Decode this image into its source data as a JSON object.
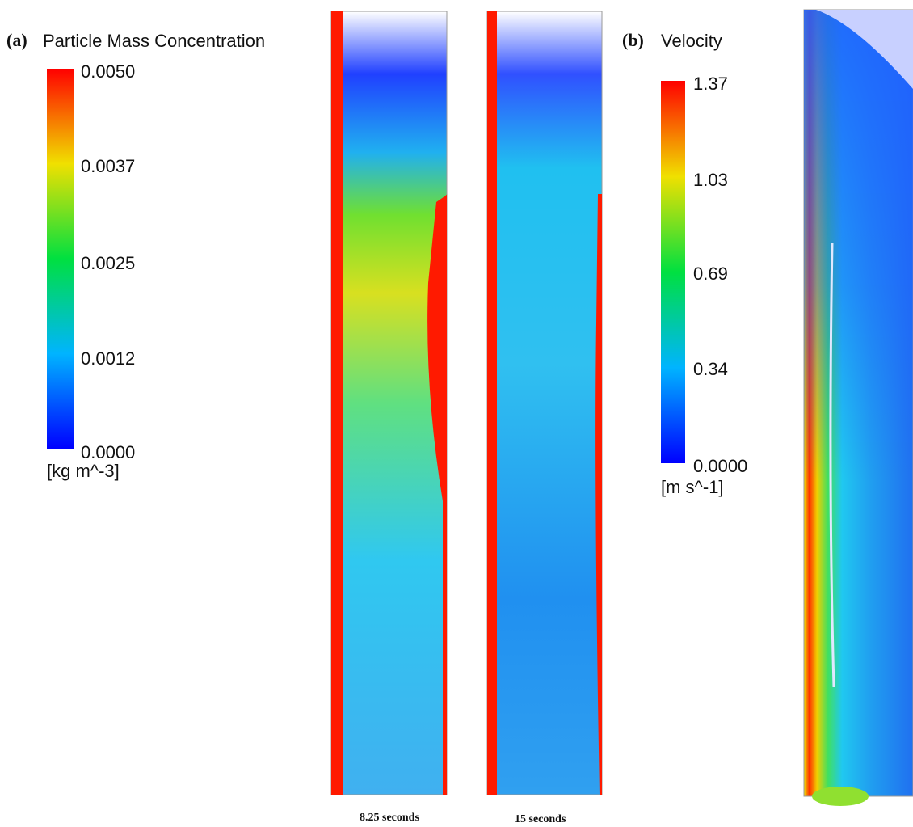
{
  "panel_a": {
    "label": "(a)",
    "title": "Particle Mass Concentration",
    "colorbar_ticks": [
      "0.0050",
      "0.0037",
      "0.0025",
      "0.0012",
      "0.0000"
    ],
    "unit": "[kg m^-3]",
    "captions": [
      "8.25 seconds",
      "15 seconds"
    ]
  },
  "panel_b": {
    "label": "(b)",
    "title": "Velocity",
    "colorbar_ticks": [
      "1.37",
      "1.03",
      "0.69",
      "0.34",
      "0.0000"
    ],
    "unit": "[m s^-1]"
  }
}
